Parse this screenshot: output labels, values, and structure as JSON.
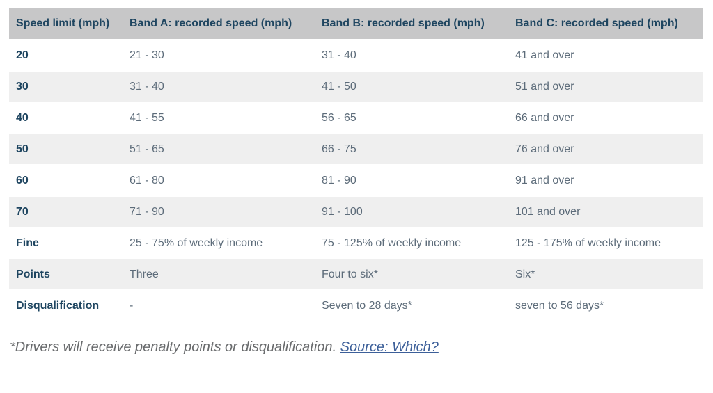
{
  "table": {
    "columns": [
      "Speed limit (mph)",
      "Band A: recorded speed (mph)",
      "Band B: recorded speed (mph)",
      "Band C: recorded speed (mph)"
    ],
    "rows": [
      {
        "cells": [
          "20",
          "21 - 30",
          "31 - 40",
          "41 and over"
        ]
      },
      {
        "cells": [
          "30",
          "31 - 40",
          "41 - 50",
          "51 and over"
        ]
      },
      {
        "cells": [
          "40",
          "41 - 55",
          "56 - 65",
          "66 and over"
        ]
      },
      {
        "cells": [
          "50",
          "51 - 65",
          "66 - 75",
          "76 and over"
        ]
      },
      {
        "cells": [
          "60",
          "61 - 80",
          "81 - 90",
          "91 and over"
        ]
      },
      {
        "cells": [
          "70",
          "71 - 90",
          "91 - 100",
          "101 and over"
        ]
      },
      {
        "cells": [
          "Fine",
          "25 - 75% of weekly income",
          "75 - 125% of weekly income",
          "125 - 175% of weekly income"
        ]
      },
      {
        "cells": [
          "Points",
          "Three",
          "Four to six*",
          "Six*"
        ]
      },
      {
        "cells": [
          "Disqualification",
          "-",
          "Seven to 28 days*",
          "seven to 56 days*"
        ]
      }
    ]
  },
  "footnote": {
    "text": "*Drivers will receive penalty points or disqualification.",
    "link_label": "Source: Which?"
  },
  "colors": {
    "header_bg": "#c7c7c8",
    "heading_text": "#1e4560",
    "body_text": "#5d6c7a",
    "alt_row_bg": "#efefef",
    "footnote_text": "#696b6d",
    "link": "#3c5f99"
  }
}
